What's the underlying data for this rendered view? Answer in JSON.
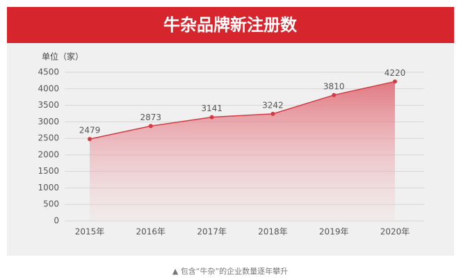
{
  "chart_data": {
    "type": "area",
    "title": "牛杂品牌新注册数",
    "ylabel": "单位（家）",
    "caption": "▲ 包含“牛杂”的企业数量逐年攀升",
    "categories": [
      "2015年",
      "2016年",
      "2017年",
      "2018年",
      "2019年",
      "2020年"
    ],
    "values": [
      2479,
      2873,
      3141,
      3242,
      3810,
      4220
    ],
    "color": "#d33a43",
    "ylim": [
      0,
      4500
    ],
    "yticks": [
      0,
      500,
      1000,
      1500,
      2000,
      2500,
      3000,
      3500,
      4000,
      4500
    ],
    "grid": true
  }
}
